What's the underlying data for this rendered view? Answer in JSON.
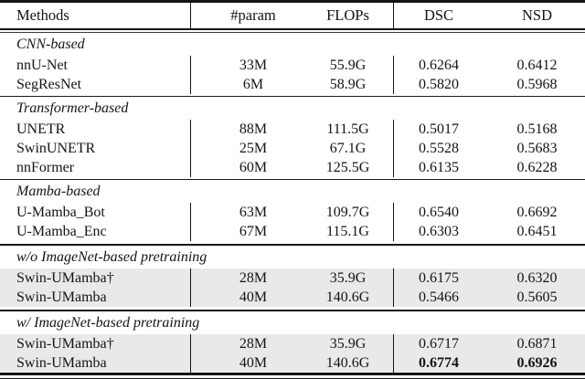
{
  "header": {
    "methods": "Methods",
    "param": "#param",
    "flops": "FLOPs",
    "dsc": "DSC",
    "nsd": "NSD"
  },
  "sections": [
    {
      "label": "CNN-based",
      "highlighted": false,
      "rows": [
        {
          "method": "nnU-Net",
          "param": "33M",
          "flops": "55.9G",
          "dsc": "0.6264",
          "nsd": "0.6412"
        },
        {
          "method": "SegResNet",
          "param": "6M",
          "flops": "58.9G",
          "dsc": "0.5820",
          "nsd": "0.5968"
        }
      ]
    },
    {
      "label": "Transformer-based",
      "highlighted": false,
      "rows": [
        {
          "method": "UNETR",
          "param": "88M",
          "flops": "111.5G",
          "dsc": "0.5017",
          "nsd": "0.5168"
        },
        {
          "method": "SwinUNETR",
          "param": "25M",
          "flops": "67.1G",
          "dsc": "0.5528",
          "nsd": "0.5683"
        },
        {
          "method": "nnFormer",
          "param": "60M",
          "flops": "125.5G",
          "dsc": "0.6135",
          "nsd": "0.6228"
        }
      ]
    },
    {
      "label": "Mamba-based",
      "highlighted": false,
      "rows": [
        {
          "method": "U-Mamba_Bot",
          "param": "63M",
          "flops": "109.7G",
          "dsc": "0.6540",
          "nsd": "0.6692"
        },
        {
          "method": "U-Mamba_Enc",
          "param": "67M",
          "flops": "115.1G",
          "dsc": "0.6303",
          "nsd": "0.6451"
        }
      ]
    },
    {
      "label": "w/o ImageNet-based pretraining",
      "highlighted": true,
      "rows": [
        {
          "method": "Swin-UMamba†",
          "param": "28M",
          "flops": "35.9G",
          "dsc": "0.6175",
          "nsd": "0.6320"
        },
        {
          "method": "Swin-UMamba",
          "param": "40M",
          "flops": "140.6G",
          "dsc": "0.5466",
          "nsd": "0.5605"
        }
      ]
    },
    {
      "label": "w/ ImageNet-based pretraining",
      "highlighted": true,
      "rows": [
        {
          "method": "Swin-UMamba†",
          "param": "28M",
          "flops": "35.9G",
          "dsc": "0.6717",
          "nsd": "0.6871"
        },
        {
          "method": "Swin-UMamba",
          "param": "40M",
          "flops": "140.6G",
          "dsc": "0.6774",
          "nsd": "0.6926",
          "bold": true
        }
      ]
    }
  ],
  "colors": {
    "highlight_row": "#e9e9e9",
    "rule": "#141414",
    "text": "#141414",
    "background": "#ffffff"
  }
}
